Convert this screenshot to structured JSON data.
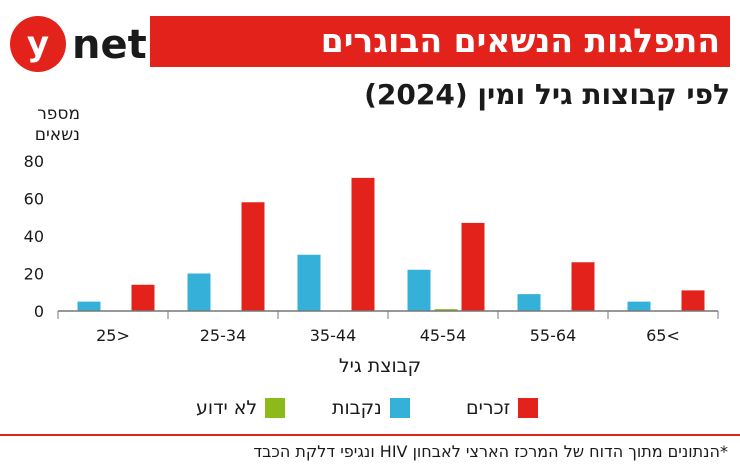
{
  "logo": {
    "text": "ynet",
    "letter_y": "y",
    "letter_net": "net",
    "brand_red": "#e3231b"
  },
  "title": "התפלגות הנשאים הבוגרים",
  "subtitle": "לפי קבוצות גיל ומין (2024)",
  "footnote": "*הנתונים מתוך הדוח של המרכז הארצי לאבחון HIV ונגיפי דלקת הכבד",
  "colors": {
    "accent": "#e3231b",
    "males": "#e3231b",
    "females": "#35b0d8",
    "unknown": "#8cba1b",
    "axis": "#777777"
  },
  "chart_data": {
    "type": "bar",
    "ylabel": "מספר נשאים",
    "xlabel": "קבוצת גיל",
    "ylim": [
      0,
      80
    ],
    "yticks": [
      0,
      20,
      40,
      60,
      80
    ],
    "grid": false,
    "legend_position": "bottom",
    "categories": [
      "25>",
      "25-34",
      "35-44",
      "45-54",
      "55-64",
      "65<"
    ],
    "series": [
      {
        "name": "נקבות",
        "color": "#35b0d8",
        "values": [
          5,
          20,
          30,
          22,
          9,
          5
        ]
      },
      {
        "name": "לא ידוע",
        "color": "#8cba1b",
        "values": [
          0,
          0,
          0,
          1,
          0,
          0
        ]
      },
      {
        "name": "זכרים",
        "color": "#e3231b",
        "values": [
          14,
          58,
          71,
          47,
          26,
          11
        ]
      }
    ]
  }
}
